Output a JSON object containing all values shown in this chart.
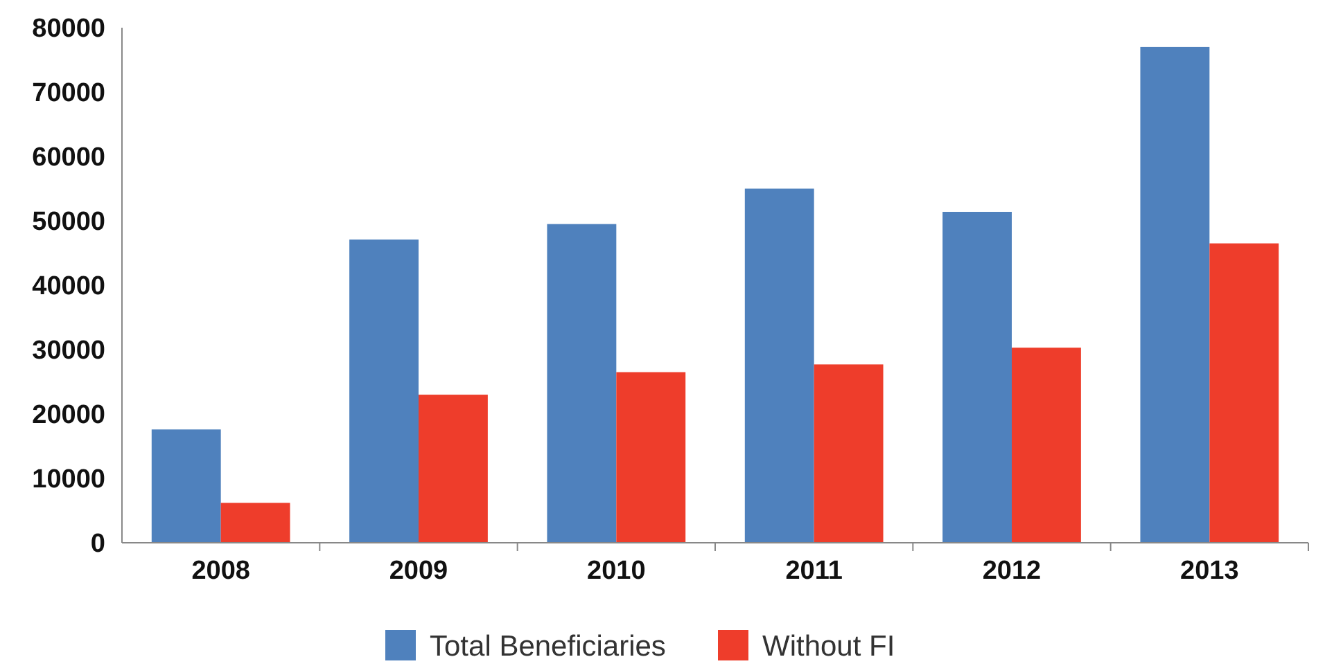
{
  "chart_data": {
    "type": "bar",
    "categories": [
      "2008",
      "2009",
      "2010",
      "2011",
      "2012",
      "2013"
    ],
    "series": [
      {
        "name": "Total Beneficiaries",
        "color": "#4f81bd",
        "values": [
          17600,
          47100,
          49500,
          55000,
          51400,
          77000
        ]
      },
      {
        "name": "Without FI",
        "color": "#ee3d2b",
        "values": [
          6200,
          23000,
          26500,
          27700,
          30300,
          46500
        ]
      }
    ],
    "ylim": [
      0,
      80000
    ],
    "yticks": [
      0,
      10000,
      20000,
      30000,
      40000,
      50000,
      60000,
      70000,
      80000
    ],
    "grid": false,
    "legend": "bottom"
  }
}
